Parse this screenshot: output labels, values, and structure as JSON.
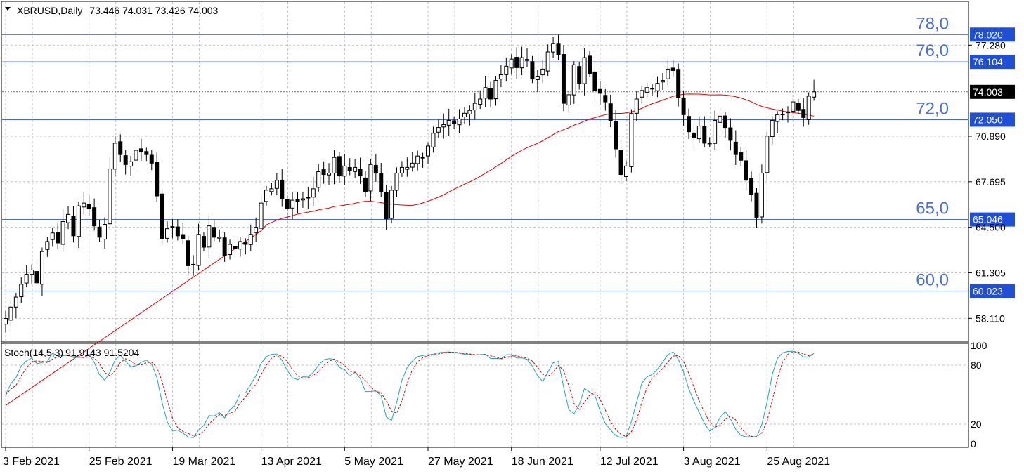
{
  "window": {
    "symbol_title": "XBRUSD,Daily",
    "ohlc": "73.446 74.031 73.426 74.003",
    "menu_triangle_icon": "triangle-down-icon"
  },
  "colors": {
    "background": "#ffffff",
    "grid": "#c0c0c0",
    "candle": "#000000",
    "ma_line": "#e00000",
    "level_line": "#3355cc",
    "level_text": "#4a6fd0",
    "stoch_main": "#20a8b0",
    "stoch_signal": "#e00000"
  },
  "price_axis": {
    "ticks": [
      "77.280",
      "70.890",
      "67.695",
      "64.500",
      "61.305",
      "58.110"
    ],
    "ylim": [
      56.5,
      80.3
    ]
  },
  "horizontal_levels": [
    {
      "value": 78.02,
      "label": "78.020",
      "zone_label": "78,0"
    },
    {
      "value": 76.104,
      "label": "76.104",
      "zone_label": "76,0"
    },
    {
      "value": 72.05,
      "label": "72.050",
      "zone_label": "72,0"
    },
    {
      "value": 65.046,
      "label": "65.046",
      "zone_label": "65,0"
    },
    {
      "value": 60.023,
      "label": "60.023",
      "zone_label": "60,0"
    }
  ],
  "current_price": {
    "value": 74.003,
    "label": "74.003"
  },
  "time_axis": {
    "labels": [
      {
        "text": "3 Feb 2021",
        "index": 0
      },
      {
        "text": "25 Feb 2021",
        "index": 16
      },
      {
        "text": "19 Mar 2021",
        "index": 32
      },
      {
        "text": "13 Apr 2021",
        "index": 49
      },
      {
        "text": "5 May 2021",
        "index": 65
      },
      {
        "text": "27 May 2021",
        "index": 81
      },
      {
        "text": "18 Jun 2021",
        "index": 97
      },
      {
        "text": "12 Jul 2021",
        "index": 114
      },
      {
        "text": "3 Aug 2021",
        "index": 130
      },
      {
        "text": "25 Aug 2021",
        "index": 146
      }
    ]
  },
  "stochastic": {
    "label": "Stoch(14,5,3)",
    "main_value": "91.9143",
    "signal_value": "91.5204",
    "params": "(14,5,3)",
    "levels_labels": [
      "100",
      "80",
      "20",
      "0"
    ],
    "level_values": [
      100,
      80,
      20,
      0
    ]
  },
  "chart_data": {
    "type": "candlestick",
    "title": "XBRUSD,Daily",
    "series_names": [],
    "candles_close": [
      58.1,
      58.9,
      59.6,
      60.5,
      61.2,
      61.5,
      60.6,
      62.8,
      63.5,
      64.1,
      63.4,
      64.9,
      65.4,
      63.9,
      66.0,
      66.2,
      65.8,
      64.6,
      63.8,
      64.7,
      68.6,
      70.4,
      69.6,
      68.9,
      69.1,
      69.9,
      69.8,
      69.6,
      69.0,
      66.7,
      63.7,
      64.4,
      64.5,
      63.9,
      63.7,
      61.8,
      61.9,
      64.0,
      63.1,
      64.6,
      63.8,
      63.8,
      62.5,
      63.3,
      63.0,
      63.5,
      63.3,
      64.0,
      64.5,
      66.2,
      67.1,
      67.2,
      67.8,
      66.5,
      65.8,
      66.4,
      66.3,
      66.5,
      66.6,
      67.2,
      68.4,
      68.2,
      68.3,
      69.4,
      68.1,
      68.8,
      68.5,
      68.7,
      68.1,
      67.0,
      68.9,
      68.3,
      67.0,
      65.1,
      67.1,
      68.3,
      68.7,
      68.7,
      69.0,
      69.5,
      69.4,
      70.2,
      71.1,
      71.5,
      71.7,
      72.0,
      71.8,
      72.1,
      72.5,
      72.7,
      73.2,
      73.5,
      74.3,
      73.5,
      74.8,
      75.2,
      75.8,
      76.3,
      75.7,
      76.4,
      76.2,
      74.9,
      75.1,
      75.6,
      76.8,
      77.4,
      76.6,
      73.2,
      73.8,
      75.9,
      74.6,
      76.4,
      75.3,
      74.1,
      73.9,
      73.3,
      72.0,
      70.0,
      68.2,
      68.8,
      72.5,
      73.5,
      74.1,
      74.3,
      74.2,
      74.6,
      74.8,
      75.6,
      75.5,
      73.6,
      72.4,
      71.2,
      70.8,
      71.6,
      70.4,
      70.4,
      72.0,
      72.3,
      71.5,
      70.6,
      69.6,
      69.2,
      67.8,
      66.8,
      65.2,
      68.3,
      70.9,
      72.0,
      72.4,
      72.4,
      72.6,
      73.3,
      72.7,
      72.2,
      73.7,
      74.0
    ],
    "ma_period_unknown": false,
    "ylim": [
      56.5,
      80.3
    ],
    "stoch_main_end": 91.9143,
    "stoch_signal_end": 91.5204
  }
}
